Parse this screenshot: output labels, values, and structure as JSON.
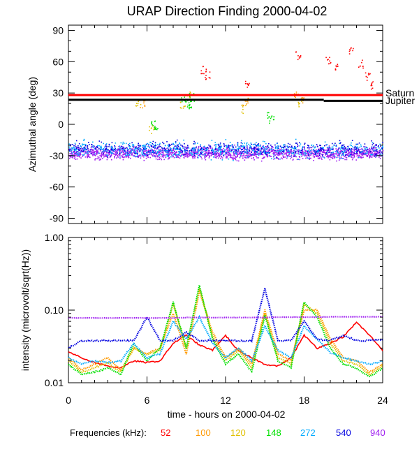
{
  "chart_data": [
    {
      "type": "scatter",
      "title": "URAP Direction Finding  2000-04-02",
      "ylabel": "Azimuthal angle (deg)",
      "xlim": [
        0,
        24
      ],
      "ylim": [
        -95,
        95
      ],
      "yticks": [
        "90",
        "60",
        "30",
        "0",
        "-30",
        "-60",
        "-90"
      ],
      "ytick_values": [
        90,
        60,
        30,
        0,
        -30,
        -60,
        -90
      ],
      "reference_lines": [
        {
          "name": "Saturn",
          "label": "Saturn",
          "value": 28,
          "color": "#ff0000"
        },
        {
          "name": "Jupiter",
          "label": "Jupiter",
          "values": [
            23.5,
            22.5
          ],
          "break_hour": 19.5,
          "color": "#000000"
        }
      ],
      "series": [
        {
          "name": "940",
          "color": "#a020f0",
          "center": -27,
          "spread": 4.5
        },
        {
          "name": "540",
          "color": "#0000e0",
          "center": -23,
          "spread": 5
        },
        {
          "name": "272",
          "color": "#00aaff",
          "center": -24,
          "spread": 6
        },
        {
          "name": "148",
          "color": "#00e000",
          "scatter": [
            [
              6.4,
              0
            ],
            [
              6.6,
              -3
            ],
            [
              8.8,
              25
            ],
            [
              9.0,
              22
            ],
            [
              9.2,
              19
            ],
            [
              9.4,
              26
            ],
            [
              15.3,
              10
            ],
            [
              15.5,
              5
            ]
          ]
        },
        {
          "name": "120",
          "color": "#e0c000",
          "scatter": [
            [
              5.3,
              22
            ],
            [
              6.3,
              -5
            ],
            [
              8.7,
              20
            ],
            [
              9.1,
              28
            ],
            [
              13.4,
              15
            ],
            [
              17.6,
              20
            ]
          ]
        },
        {
          "name": "100",
          "color": "#ff9900",
          "scatter": [
            [
              5.6,
              20
            ],
            [
              13.5,
              22
            ],
            [
              17.4,
              28
            ],
            [
              17.8,
              25
            ]
          ]
        },
        {
          "name": "52",
          "color": "#ff0000",
          "scatter": [
            [
              10.3,
              52
            ],
            [
              10.6,
              47
            ],
            [
              13.6,
              38
            ],
            [
              17.5,
              66
            ],
            [
              19.8,
              62
            ],
            [
              20.4,
              55
            ],
            [
              21.6,
              72
            ],
            [
              22.3,
              58
            ],
            [
              22.8,
              46
            ],
            [
              23.2,
              38
            ]
          ]
        }
      ]
    },
    {
      "type": "line",
      "ylabel": "intensity (microvolt/sqrt(Hz))",
      "yscale": "log",
      "ylim": [
        0.01,
        1.0
      ],
      "yticks": [
        "1.00",
        "0.10",
        "0.01"
      ],
      "ytick_values": [
        1.0,
        0.1,
        0.01
      ],
      "xlabel": "time - hours on 2000-04-02",
      "xticks": [
        "0",
        "6",
        "12",
        "18",
        "24"
      ],
      "xtick_values": [
        0,
        6,
        12,
        18,
        24
      ],
      "series": [
        {
          "name": "52",
          "color": "#ff0000",
          "x": [
            0,
            1,
            2,
            3,
            4,
            5,
            6,
            7,
            8,
            9,
            10,
            11,
            12,
            13,
            14,
            15,
            16,
            17,
            18,
            19,
            20,
            21,
            22,
            23,
            24
          ],
          "y": [
            0.027,
            0.022,
            0.019,
            0.017,
            0.016,
            0.02,
            0.019,
            0.02,
            0.035,
            0.045,
            0.033,
            0.028,
            0.045,
            0.027,
            0.022,
            0.018,
            0.017,
            0.022,
            0.045,
            0.03,
            0.035,
            0.043,
            0.068,
            0.045,
            0.028
          ]
        },
        {
          "name": "100",
          "color": "#ff9900",
          "x": [
            0,
            1,
            2,
            3,
            4,
            5,
            6,
            7,
            8,
            9,
            10,
            11,
            12,
            13,
            14,
            15,
            16,
            17,
            18,
            19,
            20,
            21,
            22,
            23,
            24
          ],
          "y": [
            0.022,
            0.015,
            0.018,
            0.022,
            0.015,
            0.03,
            0.025,
            0.03,
            0.09,
            0.025,
            0.18,
            0.05,
            0.022,
            0.03,
            0.018,
            0.1,
            0.025,
            0.02,
            0.1,
            0.1,
            0.04,
            0.022,
            0.02,
            0.014,
            0.018
          ]
        },
        {
          "name": "120",
          "color": "#e0c000",
          "x": [
            0,
            1,
            2,
            3,
            4,
            5,
            6,
            7,
            8,
            9,
            10,
            11,
            12,
            13,
            14,
            15,
            16,
            17,
            18,
            19,
            20,
            21,
            22,
            23,
            24
          ],
          "y": [
            0.02,
            0.014,
            0.016,
            0.019,
            0.014,
            0.03,
            0.024,
            0.028,
            0.12,
            0.03,
            0.2,
            0.045,
            0.02,
            0.028,
            0.016,
            0.09,
            0.022,
            0.018,
            0.12,
            0.09,
            0.035,
            0.02,
            0.018,
            0.013,
            0.017
          ]
        },
        {
          "name": "148",
          "color": "#00e000",
          "x": [
            0,
            1,
            2,
            3,
            4,
            5,
            6,
            7,
            8,
            9,
            10,
            11,
            12,
            13,
            14,
            15,
            16,
            17,
            18,
            19,
            20,
            21,
            22,
            23,
            24
          ],
          "y": [
            0.018,
            0.013,
            0.014,
            0.016,
            0.013,
            0.035,
            0.02,
            0.03,
            0.13,
            0.03,
            0.22,
            0.04,
            0.018,
            0.025,
            0.014,
            0.085,
            0.02,
            0.016,
            0.13,
            0.08,
            0.03,
            0.018,
            0.016,
            0.012,
            0.016
          ]
        },
        {
          "name": "272",
          "color": "#00aaff",
          "x": [
            0,
            1,
            2,
            3,
            4,
            5,
            6,
            7,
            8,
            9,
            10,
            11,
            12,
            13,
            14,
            15,
            16,
            17,
            18,
            19,
            20,
            21,
            22,
            23,
            24
          ],
          "y": [
            0.022,
            0.018,
            0.02,
            0.019,
            0.02,
            0.035,
            0.022,
            0.025,
            0.07,
            0.04,
            0.08,
            0.035,
            0.022,
            0.03,
            0.02,
            0.06,
            0.028,
            0.022,
            0.06,
            0.04,
            0.026,
            0.022,
            0.02,
            0.018,
            0.02
          ]
        },
        {
          "name": "540",
          "color": "#0000e0",
          "x": [
            0,
            1,
            2,
            3,
            4,
            5,
            6,
            7,
            8,
            9,
            10,
            11,
            12,
            13,
            14,
            15,
            16,
            17,
            18,
            19,
            20,
            21,
            22,
            23,
            24
          ],
          "y": [
            0.03,
            0.038,
            0.038,
            0.038,
            0.038,
            0.038,
            0.08,
            0.038,
            0.038,
            0.05,
            0.038,
            0.038,
            0.038,
            0.038,
            0.038,
            0.2,
            0.038,
            0.038,
            0.07,
            0.04,
            0.038,
            0.045,
            0.038,
            0.038,
            0.04
          ]
        },
        {
          "name": "940",
          "color": "#a020f0",
          "x": [
            0,
            1,
            2,
            3,
            4,
            5,
            6,
            7,
            8,
            9,
            10,
            11,
            12,
            13,
            14,
            15,
            16,
            17,
            18,
            19,
            20,
            21,
            22,
            23,
            24
          ],
          "y": [
            0.078,
            0.078,
            0.078,
            0.078,
            0.078,
            0.078,
            0.078,
            0.078,
            0.078,
            0.079,
            0.079,
            0.079,
            0.079,
            0.079,
            0.079,
            0.079,
            0.08,
            0.08,
            0.08,
            0.08,
            0.081,
            0.081,
            0.081,
            0.081,
            0.081
          ]
        }
      ]
    }
  ],
  "legend": {
    "label": "Frequencies (kHz):",
    "items": [
      {
        "text": "52",
        "color": "#ff0000"
      },
      {
        "text": "100",
        "color": "#ff9900"
      },
      {
        "text": "120",
        "color": "#e0c000"
      },
      {
        "text": "148",
        "color": "#00e000"
      },
      {
        "text": "272",
        "color": "#00aaff"
      },
      {
        "text": "540",
        "color": "#0000e0"
      },
      {
        "text": "940",
        "color": "#a020f0"
      }
    ]
  }
}
